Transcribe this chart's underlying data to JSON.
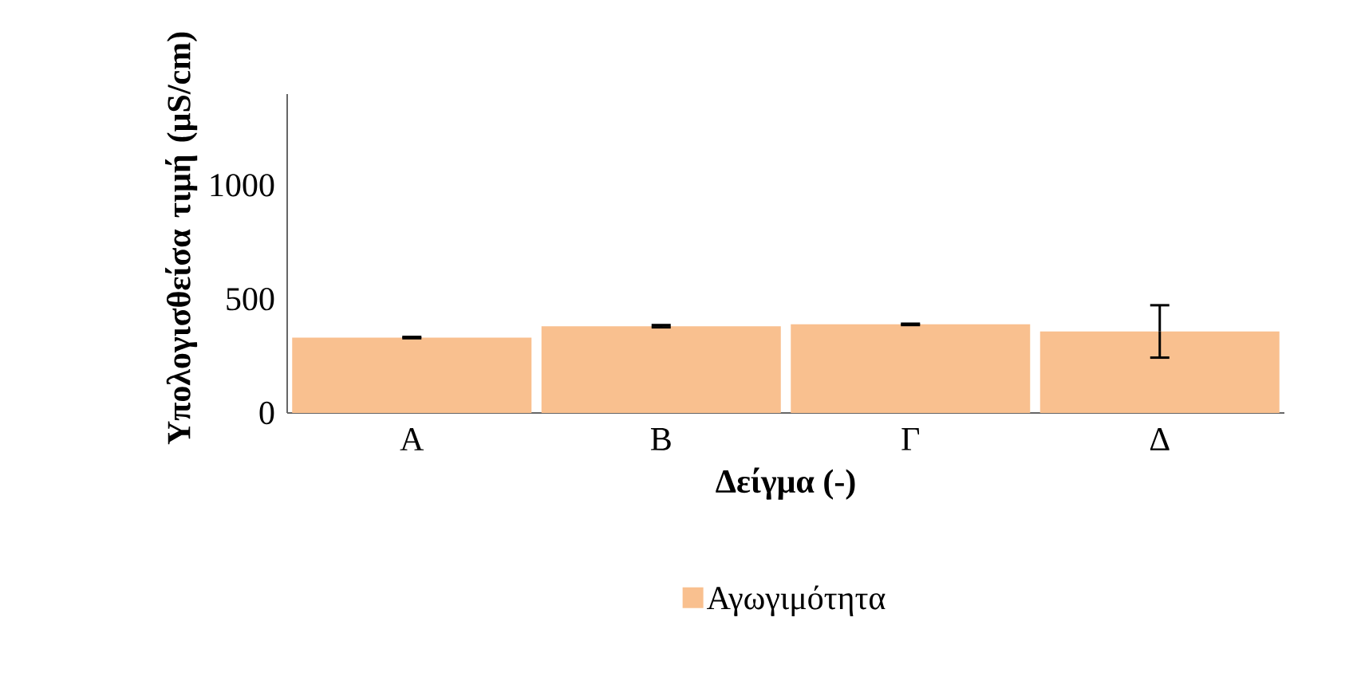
{
  "chart_data": {
    "type": "bar",
    "categories": [
      "A",
      "B",
      "Γ",
      "Δ"
    ],
    "series": [
      {
        "name": "Αγωγιμότητα",
        "color": "#f9c08f",
        "values": [
          331,
          381,
          389,
          358
        ],
        "errors": [
          3,
          5,
          3,
          115
        ]
      }
    ],
    "xlabel": "Δείγμα (-)",
    "ylabel": "Υπολογισθείσα τιμή (μS/cm)",
    "ylim": [
      0,
      1400
    ],
    "yticks": [
      0,
      500,
      1000
    ],
    "grid": false,
    "legend": "bottom"
  }
}
